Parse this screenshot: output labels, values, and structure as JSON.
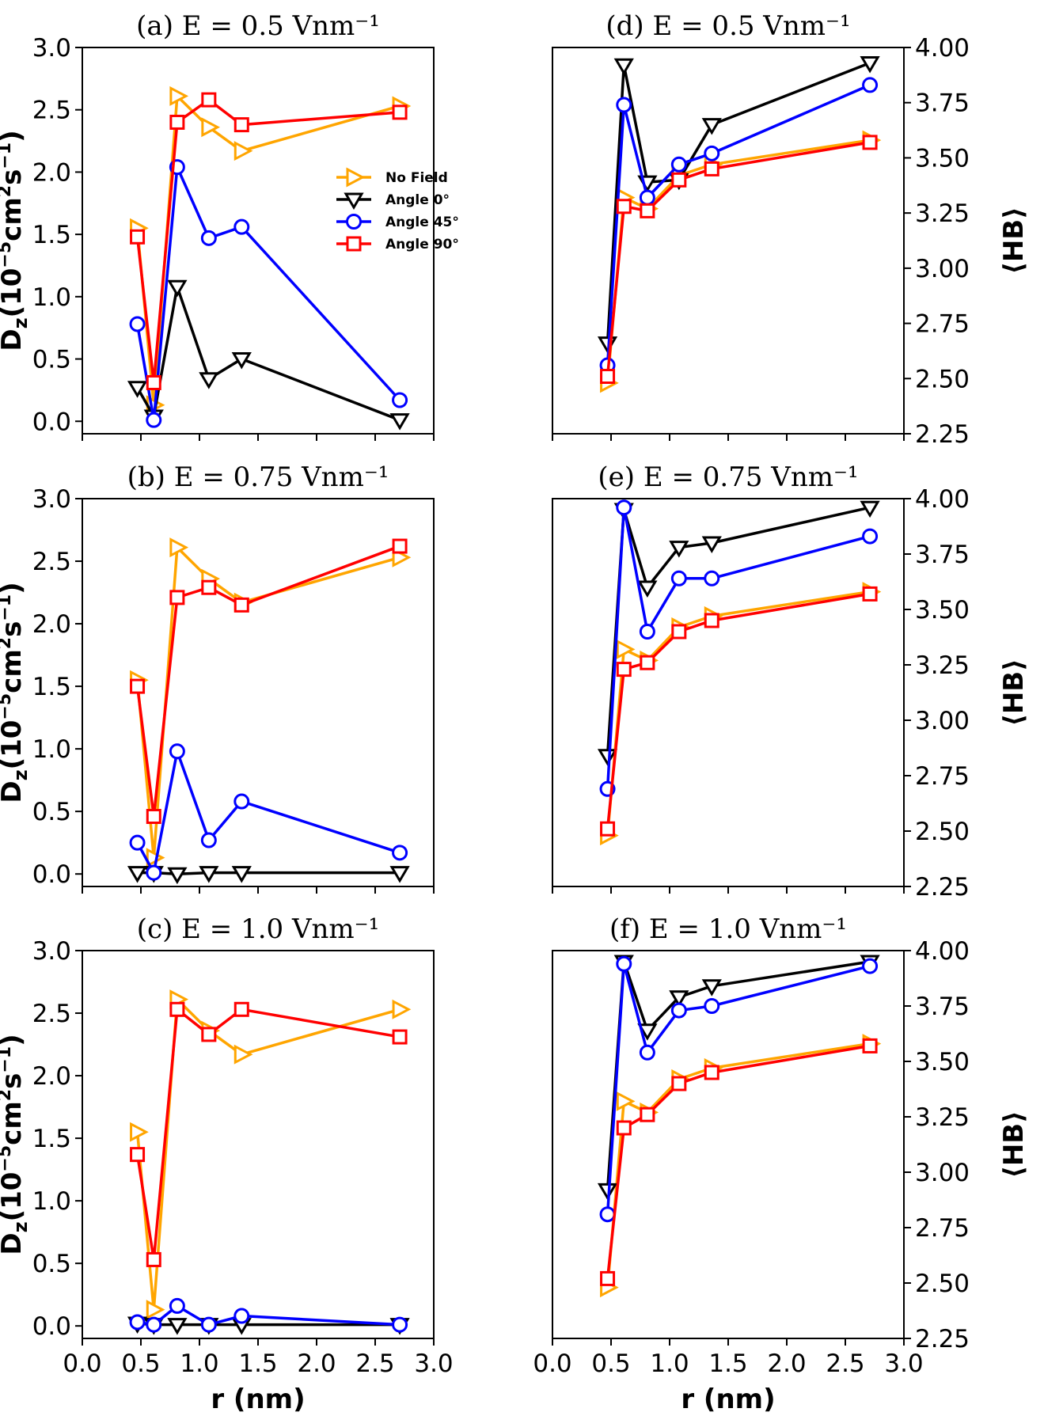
{
  "figure": {
    "left_ylabel": "D_z(10^{-5}cm^2s^{-1})",
    "right_ylabel": "⟨HB⟩",
    "xlabel": "r (nm)"
  },
  "series_styles": [
    {
      "name": "No Field",
      "color": "#FFA500",
      "marker": "triangle-right"
    },
    {
      "name": "Angle 0°",
      "color": "#000000",
      "marker": "triangle-down"
    },
    {
      "name": "Angle 45°",
      "color": "#0000FF",
      "marker": "circle"
    },
    {
      "name": "Angle 90°",
      "color": "#FF0000",
      "marker": "square"
    }
  ],
  "chart_data": [
    {
      "type": "line",
      "panel": "a",
      "title": "(a) E = 0.5 Vnm⁻¹",
      "x": [
        0.47,
        0.61,
        0.81,
        1.08,
        1.36,
        2.71
      ],
      "xlim": [
        0.0,
        3.0
      ],
      "ylim": [
        -0.1,
        3.0
      ],
      "yticks": [
        "0.0",
        "0.5",
        "1.0",
        "1.5",
        "2.0",
        "2.5",
        "3.0"
      ],
      "legend": "center-right",
      "series": [
        {
          "name": "No Field",
          "values": [
            1.55,
            0.13,
            2.61,
            2.36,
            2.17,
            2.53
          ]
        },
        {
          "name": "Angle 0°",
          "values": [
            0.27,
            0.04,
            1.08,
            0.34,
            0.5,
            0.01
          ]
        },
        {
          "name": "Angle 45°",
          "values": [
            0.78,
            0.01,
            2.04,
            1.47,
            1.56,
            0.17
          ]
        },
        {
          "name": "Angle 90°",
          "values": [
            1.48,
            0.31,
            2.4,
            2.58,
            2.38,
            2.48
          ]
        }
      ]
    },
    {
      "type": "line",
      "panel": "b",
      "title": "(b) E = 0.75 Vnm⁻¹",
      "x": [
        0.47,
        0.61,
        0.81,
        1.08,
        1.36,
        2.71
      ],
      "xlim": [
        0.0,
        3.0
      ],
      "ylim": [
        -0.1,
        3.0
      ],
      "yticks": [
        "0.0",
        "0.5",
        "1.0",
        "1.5",
        "2.0",
        "2.5",
        "3.0"
      ],
      "series": [
        {
          "name": "No Field",
          "values": [
            1.55,
            0.13,
            2.61,
            2.36,
            2.17,
            2.53
          ]
        },
        {
          "name": "Angle 0°",
          "values": [
            0.01,
            0.01,
            0.0,
            0.01,
            0.01,
            0.01
          ]
        },
        {
          "name": "Angle 45°",
          "values": [
            0.25,
            0.01,
            0.98,
            0.27,
            0.58,
            0.17
          ]
        },
        {
          "name": "Angle 90°",
          "values": [
            1.5,
            0.46,
            2.21,
            2.29,
            2.15,
            2.62
          ]
        }
      ]
    },
    {
      "type": "line",
      "panel": "c",
      "title": "(c) E = 1.0 Vnm⁻¹",
      "x": [
        0.47,
        0.61,
        0.81,
        1.08,
        1.36,
        2.71
      ],
      "xlim": [
        0.0,
        3.0
      ],
      "ylim": [
        -0.1,
        3.0
      ],
      "xticks": [
        "0.0",
        "0.5",
        "1.0",
        "1.5",
        "2.0",
        "2.5",
        "3.0"
      ],
      "yticks": [
        "0.0",
        "0.5",
        "1.0",
        "1.5",
        "2.0",
        "2.5",
        "3.0"
      ],
      "series": [
        {
          "name": "No Field",
          "values": [
            1.55,
            0.13,
            2.61,
            2.36,
            2.17,
            2.53
          ]
        },
        {
          "name": "Angle 0°",
          "values": [
            0.02,
            0.01,
            0.01,
            0.01,
            0.01,
            0.01
          ]
        },
        {
          "name": "Angle 45°",
          "values": [
            0.03,
            0.01,
            0.16,
            0.01,
            0.08,
            0.01
          ]
        },
        {
          "name": "Angle 90°",
          "values": [
            1.37,
            0.53,
            2.53,
            2.33,
            2.53,
            2.31
          ]
        }
      ]
    },
    {
      "type": "line",
      "panel": "d",
      "title": "(d) E = 0.5 Vnm⁻¹",
      "x": [
        0.47,
        0.61,
        0.81,
        1.08,
        1.36,
        2.71
      ],
      "xlim": [
        0.0,
        3.0
      ],
      "ylim": [
        2.25,
        4.0
      ],
      "y_axis_side": "right",
      "yticks": [
        "2.25",
        "2.50",
        "2.75",
        "3.00",
        "3.25",
        "3.50",
        "3.75",
        "4.00"
      ],
      "series": [
        {
          "name": "No Field",
          "values": [
            2.48,
            3.32,
            3.27,
            3.42,
            3.47,
            3.58
          ]
        },
        {
          "name": "Angle 0°",
          "values": [
            2.66,
            3.92,
            3.39,
            3.4,
            3.65,
            3.93
          ]
        },
        {
          "name": "Angle 45°",
          "values": [
            2.56,
            3.74,
            3.32,
            3.47,
            3.52,
            3.83
          ]
        },
        {
          "name": "Angle 90°",
          "values": [
            2.51,
            3.28,
            3.26,
            3.4,
            3.45,
            3.57
          ]
        }
      ]
    },
    {
      "type": "line",
      "panel": "e",
      "title": "(e) E = 0.75 Vnm⁻¹",
      "x": [
        0.47,
        0.61,
        0.81,
        1.08,
        1.36,
        2.71
      ],
      "xlim": [
        0.0,
        3.0
      ],
      "ylim": [
        2.25,
        4.0
      ],
      "y_axis_side": "right",
      "yticks": [
        "2.25",
        "2.50",
        "2.75",
        "3.00",
        "3.25",
        "3.50",
        "3.75",
        "4.00"
      ],
      "series": [
        {
          "name": "No Field",
          "values": [
            2.48,
            3.32,
            3.27,
            3.42,
            3.47,
            3.58
          ]
        },
        {
          "name": "Angle 0°",
          "values": [
            2.84,
            3.95,
            3.6,
            3.78,
            3.8,
            3.96
          ]
        },
        {
          "name": "Angle 45°",
          "values": [
            2.69,
            3.96,
            3.4,
            3.64,
            3.64,
            3.83
          ]
        },
        {
          "name": "Angle 90°",
          "values": [
            2.51,
            3.23,
            3.26,
            3.4,
            3.45,
            3.57
          ]
        }
      ]
    },
    {
      "type": "line",
      "panel": "f",
      "title": "(f) E = 1.0 Vnm⁻¹",
      "x": [
        0.47,
        0.61,
        0.81,
        1.08,
        1.36,
        2.71
      ],
      "xlim": [
        0.0,
        3.0
      ],
      "ylim": [
        2.25,
        4.0
      ],
      "y_axis_side": "right",
      "xticks": [
        "0.0",
        "0.5",
        "1.0",
        "1.5",
        "2.0",
        "2.5",
        "3.0"
      ],
      "yticks": [
        "2.25",
        "2.50",
        "2.75",
        "3.00",
        "3.25",
        "3.50",
        "3.75",
        "4.00"
      ],
      "series": [
        {
          "name": "No Field",
          "values": [
            2.48,
            3.32,
            3.27,
            3.42,
            3.47,
            3.58
          ]
        },
        {
          "name": "Angle 0°",
          "values": [
            2.92,
            3.95,
            3.64,
            3.79,
            3.84,
            3.95
          ]
        },
        {
          "name": "Angle 45°",
          "values": [
            2.81,
            3.94,
            3.54,
            3.73,
            3.75,
            3.93
          ]
        },
        {
          "name": "Angle 90°",
          "values": [
            2.52,
            3.2,
            3.26,
            3.4,
            3.45,
            3.57
          ]
        }
      ]
    }
  ]
}
